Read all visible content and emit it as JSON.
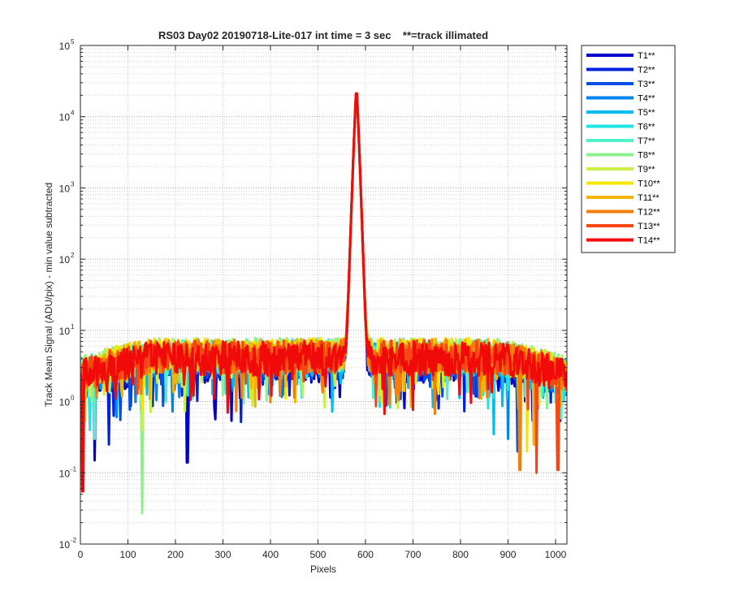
{
  "chart_data": {
    "type": "line",
    "title": "RS03 Day02 20190718-Lite-017 int time = 3 sec    **=track illimated",
    "xlabel": "Pixels",
    "ylabel": "Track Mean Signal (ADU/pix) - min value subtracted",
    "xlim": [
      0,
      1024
    ],
    "ylim": [
      0.01,
      100000
    ],
    "yscale": "log",
    "grid": "on (major and minor, dotted)",
    "legend_position": "outside top-right",
    "x_ticks": [
      "0",
      "100",
      "200",
      "300",
      "400",
      "500",
      "600",
      "700",
      "800",
      "900",
      "1000"
    ],
    "y_ticks": [
      {
        "base": "10",
        "exp": "-2"
      },
      {
        "base": "10",
        "exp": "-1"
      },
      {
        "base": "10",
        "exp": "0"
      },
      {
        "base": "10",
        "exp": "1"
      },
      {
        "base": "10",
        "exp": "2"
      },
      {
        "base": "10",
        "exp": "3"
      },
      {
        "base": "10",
        "exp": "4"
      },
      {
        "base": "10",
        "exp": "5"
      }
    ],
    "series": [
      {
        "name": "T1**",
        "color": "#0000c8",
        "peak_x": 581,
        "peak_y": 25000,
        "baseline": 3.2,
        "min_dips": [
          [
            30,
            0.15
          ],
          [
            225,
            0.14
          ]
        ]
      },
      {
        "name": "T2**",
        "color": "#0020dc",
        "peak_x": 581,
        "peak_y": 25000,
        "baseline": 3.4,
        "min_dips": [
          [
            60,
            0.25
          ]
        ]
      },
      {
        "name": "T3**",
        "color": "#0050e6",
        "peak_x": 581,
        "peak_y": 25500,
        "baseline": 3.6,
        "min_dips": [
          [
            920,
            0.2
          ]
        ]
      },
      {
        "name": "T4**",
        "color": "#0084f0",
        "peak_x": 581,
        "peak_y": 25500,
        "baseline": 3.8,
        "min_dips": [
          [
            900,
            0.3
          ]
        ]
      },
      {
        "name": "T5**",
        "color": "#00bcf0",
        "peak_x": 581,
        "peak_y": 26000,
        "baseline": 4.0,
        "min_dips": [
          [
            870,
            0.35
          ]
        ]
      },
      {
        "name": "T6**",
        "color": "#1ee6e6",
        "peak_x": 581,
        "peak_y": 26000,
        "baseline": 4.2,
        "min_dips": [
          [
            20,
            0.4
          ]
        ]
      },
      {
        "name": "T7**",
        "color": "#50f0c8",
        "peak_x": 581,
        "peak_y": 26000,
        "baseline": 4.4,
        "min_dips": [
          [
            30,
            0.3
          ]
        ]
      },
      {
        "name": "T8**",
        "color": "#8cf08c",
        "peak_x": 581,
        "peak_y": 26000,
        "baseline": 4.5,
        "min_dips": [
          [
            130,
            0.027
          ]
        ]
      },
      {
        "name": "T9**",
        "color": "#c8f046",
        "peak_x": 581,
        "peak_y": 26500,
        "baseline": 4.5,
        "min_dips": [
          [
            130,
            0.4
          ]
        ]
      },
      {
        "name": "T10**",
        "color": "#f5e600",
        "peak_x": 581,
        "peak_y": 26500,
        "baseline": 4.5,
        "min_dips": [
          [
            940,
            0.2
          ]
        ]
      },
      {
        "name": "T11**",
        "color": "#f5b400",
        "peak_x": 581,
        "peak_y": 26500,
        "baseline": 4.4,
        "min_dips": [
          [
            955,
            0.25
          ]
        ]
      },
      {
        "name": "T12**",
        "color": "#f57d0a",
        "peak_x": 581,
        "peak_y": 27000,
        "baseline": 4.3,
        "min_dips": [
          [
            925,
            0.11
          ]
        ]
      },
      {
        "name": "T13**",
        "color": "#f54614",
        "peak_x": 581,
        "peak_y": 27000,
        "baseline": 4.2,
        "min_dips": [
          [
            960,
            0.1
          ],
          [
            1005,
            0.11
          ]
        ]
      },
      {
        "name": "T14**",
        "color": "#f00a0a",
        "peak_x": 581,
        "peak_y": 27500,
        "baseline": 4.0,
        "min_dips": [
          [
            5,
            0.055
          ]
        ]
      }
    ]
  }
}
